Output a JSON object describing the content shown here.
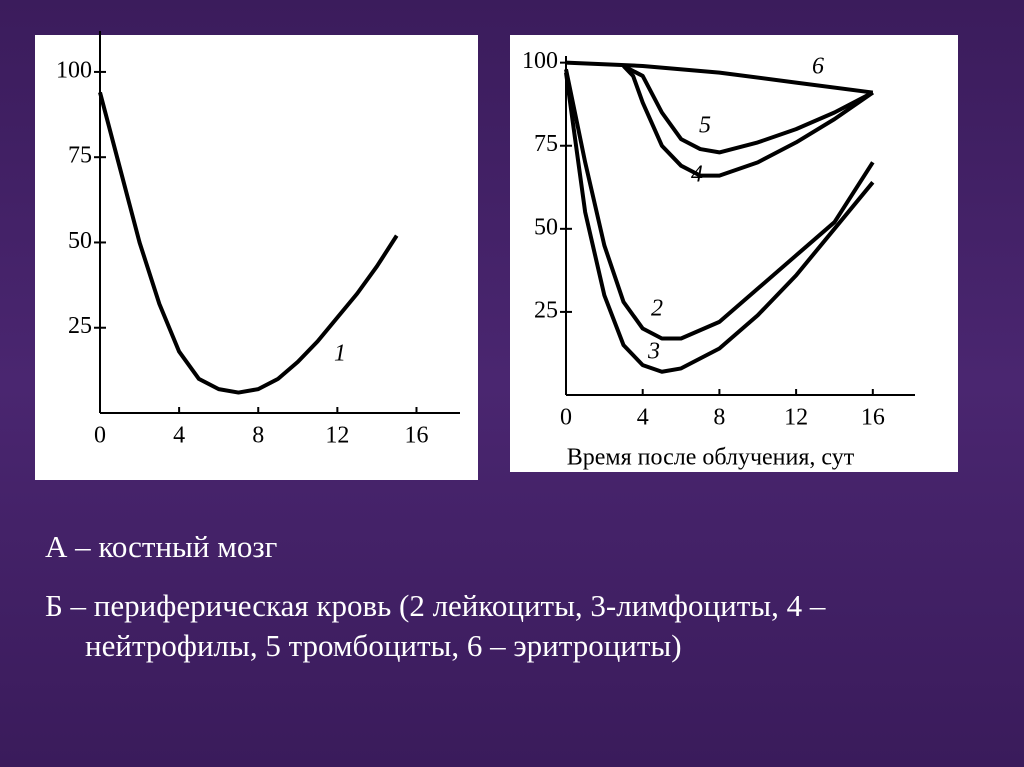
{
  "chart_data": [
    {
      "type": "line",
      "xlim": [
        0,
        18.2
      ],
      "ylim": [
        0,
        112
      ],
      "xticks": [
        0,
        4,
        8,
        12,
        16
      ],
      "yticks": [
        25,
        50,
        75,
        100
      ],
      "series": [
        {
          "name": "1",
          "color": "#000000",
          "x": [
            0,
            1,
            2,
            3,
            4,
            5,
            6,
            7,
            8,
            9,
            10,
            11,
            12,
            13,
            14,
            15
          ],
          "values": [
            94,
            72,
            50,
            32,
            18,
            10,
            7,
            6,
            7,
            10,
            15,
            21,
            28,
            35,
            43,
            52
          ]
        }
      ]
    },
    {
      "type": "line",
      "x_label": "Время после облучения, сут",
      "xlim": [
        0,
        18.2
      ],
      "ylim": [
        0,
        102
      ],
      "xticks": [
        0,
        4,
        8,
        12,
        16
      ],
      "yticks": [
        25,
        50,
        75,
        100
      ],
      "series": [
        {
          "name": "6",
          "color": "#000000",
          "x": [
            0,
            4,
            8,
            12,
            16
          ],
          "values": [
            100,
            99,
            97,
            94,
            91
          ]
        },
        {
          "name": "5",
          "color": "#000000",
          "x": [
            3,
            4,
            5,
            6,
            7,
            8,
            10,
            12,
            14,
            16
          ],
          "values": [
            99,
            96,
            85,
            77,
            74,
            73,
            76,
            80,
            85,
            91
          ]
        },
        {
          "name": "4",
          "color": "#000000",
          "x": [
            3,
            3.5,
            4,
            5,
            6,
            7,
            8,
            10,
            12,
            14,
            16
          ],
          "values": [
            99,
            96,
            88,
            75,
            69,
            66,
            66,
            70,
            76,
            83,
            91
          ]
        },
        {
          "name": "2",
          "color": "#000000",
          "x": [
            0,
            1,
            2,
            3,
            4,
            5,
            6,
            8,
            10,
            12,
            14,
            16
          ],
          "values": [
            98,
            70,
            45,
            28,
            20,
            17,
            17,
            22,
            32,
            42,
            52,
            70
          ]
        },
        {
          "name": "3",
          "color": "#000000",
          "x": [
            0,
            1,
            2,
            3,
            4,
            5,
            6,
            8,
            10,
            12,
            14,
            16
          ],
          "values": [
            97,
            55,
            30,
            15,
            9,
            7,
            8,
            14,
            24,
            36,
            50,
            64
          ]
        }
      ]
    }
  ],
  "caption": {
    "line_a": "А – костный мозг",
    "line_b": "Б – периферическая кровь (2 лейкоциты, 3-лимфоциты, 4 – нейтрофилы,  5 тромбоциты, 6 – эритроциты)"
  }
}
